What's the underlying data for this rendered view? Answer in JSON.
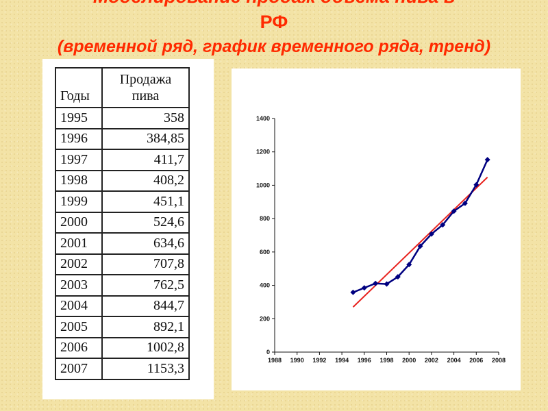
{
  "slide": {
    "title_line1": "Моделирование продаж объёма пива в",
    "title_line2": "РФ",
    "title_line3": "(временной ряд, график временного ряда, тренд)"
  },
  "table": {
    "headers": [
      "Годы",
      "Продажа пива"
    ],
    "rows": [
      [
        "1995",
        "358"
      ],
      [
        "1996",
        "384,85"
      ],
      [
        "1997",
        "411,7"
      ],
      [
        "1998",
        "408,2"
      ],
      [
        "1999",
        "451,1"
      ],
      [
        "2000",
        "524,6"
      ],
      [
        "2001",
        "634,6"
      ],
      [
        "2002",
        "707,8"
      ],
      [
        "2003",
        "762,5"
      ],
      [
        "2004",
        "844,7"
      ],
      [
        "2005",
        "892,1"
      ],
      [
        "2006",
        "1002,8"
      ],
      [
        "2007",
        "1153,3"
      ]
    ]
  },
  "chart_data": {
    "type": "line",
    "title": "",
    "xlabel": "",
    "ylabel": "",
    "xlim": [
      1988,
      2008
    ],
    "ylim": [
      0,
      1400
    ],
    "x_ticks": [
      1988,
      1990,
      1992,
      1994,
      1996,
      1998,
      2000,
      2002,
      2004,
      2006,
      2008
    ],
    "y_ticks": [
      0,
      200,
      400,
      600,
      800,
      1000,
      1200,
      1400
    ],
    "grid": false,
    "legend": "none",
    "x": [
      1995,
      1996,
      1997,
      1998,
      1999,
      2000,
      2001,
      2002,
      2003,
      2004,
      2005,
      2006,
      2007
    ],
    "series": [
      {
        "values": [
          358,
          384.85,
          411.7,
          408.2,
          451.1,
          524.6,
          634.6,
          707.8,
          762.5,
          844.7,
          892.1,
          1002.8,
          1153.3
        ],
        "color": "#000080",
        "marker": "diamond"
      }
    ],
    "trendline": {
      "x": [
        1995,
        2007
      ],
      "y": [
        270,
        1048
      ],
      "color": "#e8231f"
    }
  }
}
